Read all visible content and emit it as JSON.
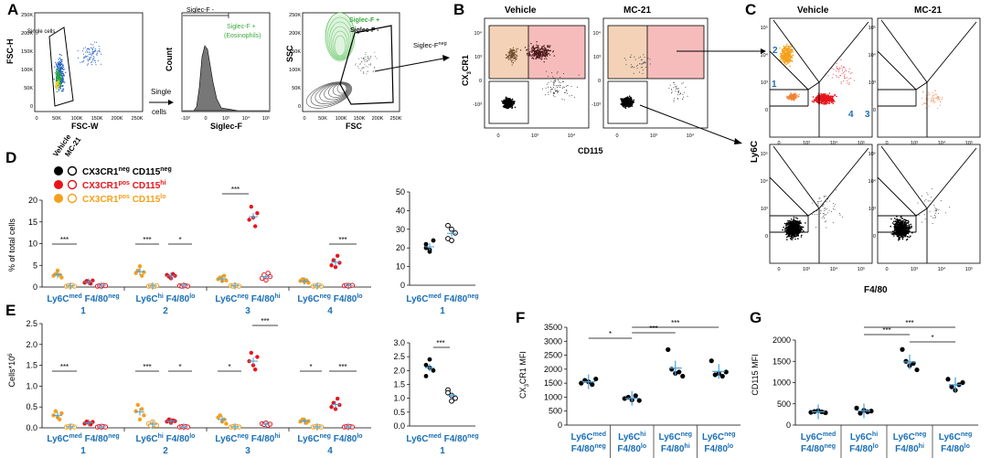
{
  "panels": {
    "A": {
      "letter": "A",
      "plot1": {
        "ylabel": "FSC-H",
        "xlabel": "FSC-W",
        "gate": "Single cells",
        "yticks": [
          "250K",
          "200K",
          "150K",
          "100K",
          "50K",
          "0"
        ],
        "xticks": [
          "0",
          "50K",
          "100K",
          "150K",
          "200K",
          "250K"
        ]
      },
      "arrow1": [
        "Single",
        "cells"
      ],
      "plot2": {
        "ylabel": "Count",
        "xlabel": "Siglec-F",
        "neg_label": "Siglec-F -",
        "pos_label": [
          "Siglec-F +",
          "(Eosinophils)"
        ],
        "xticks": [
          "-10³",
          "0",
          "10³",
          "10⁴",
          "10⁵"
        ]
      },
      "plot3": {
        "ylabel": "SSC",
        "xlabel": "FSC",
        "pos_label": "Siglec-F +",
        "neg_label": "Siglec-F -",
        "yticks": [
          "250K",
          "200K",
          "150K",
          "100K",
          "50K",
          "0"
        ],
        "xticks": [
          "0",
          "50K",
          "100K",
          "150K",
          "200K",
          "250K"
        ]
      },
      "arrow3": "Siglec-F",
      "arrow3_sup": "neg"
    },
    "B": {
      "letter": "B",
      "titles": [
        "Vehicle",
        "MC-21"
      ],
      "ylabel": "CX",
      "ylabel_sub": "3",
      "ylabel_rest": "CR1",
      "xlabel": "CD115",
      "ticks_y": [
        "10⁴",
        "10³",
        "0",
        "-10³"
      ],
      "ticks_x": [
        "0",
        "10³",
        "10⁴"
      ]
    },
    "C": {
      "letter": "C",
      "titles": [
        "Vehicle",
        "MC-21"
      ],
      "ylabel": "Ly6C",
      "xlabel": "F4/80",
      "gate_numbers": [
        "1",
        "2",
        "3",
        "4"
      ],
      "ticks_y": [
        "10⁵",
        "10⁴",
        "10³",
        "0"
      ],
      "ticks_x": [
        "0",
        "10³",
        "10⁴",
        "10⁵"
      ]
    },
    "D": {
      "letter": "D",
      "ylabel": "% of total cells",
      "legend": {
        "col1": "Vehicle",
        "col2": "MC-21",
        "rows": [
          {
            "pre": "CX3CR1",
            "sup1": "neg",
            "mid": " CD115",
            "sup2": "neg",
            "color": "#000000"
          },
          {
            "pre": "CX3CR1",
            "sup1": "pos",
            "mid": " CD115",
            "sup2": "hi",
            "color": "#e8141b"
          },
          {
            "pre": "CX3CR1",
            "sup1": "pos",
            "mid": " CD115",
            "sup2": "lo",
            "color": "#f6a01a"
          }
        ]
      },
      "yticks": [
        "20",
        "15",
        "10",
        "5",
        "0"
      ],
      "sig": [
        "***",
        "***",
        "*",
        "***",
        "***"
      ],
      "right_yticks": [
        "50",
        "40",
        "30",
        "20",
        "10",
        "0"
      ]
    },
    "E": {
      "letter": "E",
      "ylabel": "Cells*10",
      "ylabel_sup": "6",
      "yticks": [
        "2.5",
        "2.0",
        "1.5",
        "1.0",
        "0.5",
        "0.0"
      ],
      "sig": [
        "***",
        "***",
        "*",
        "*",
        "***",
        "*",
        "***"
      ],
      "right_yticks": [
        "3.0",
        "2.5",
        "2.0",
        "1.5",
        "1.0",
        "0.5",
        "0.0"
      ],
      "right_sig": "***"
    },
    "groups": [
      {
        "a": "Ly6C",
        "as": "med",
        "b": " F4/80",
        "bs": "neg",
        "n": "1"
      },
      {
        "a": "Ly6C",
        "as": "hi",
        "b": " F4/80",
        "bs": "lo",
        "n": "2"
      },
      {
        "a": "Ly6C",
        "as": "neg",
        "b": " F4/80",
        "bs": "hi",
        "n": "3"
      },
      {
        "a": "Ly6C",
        "as": "neg",
        "b": " F4/80",
        "bs": "lo",
        "n": "4"
      }
    ],
    "F": {
      "letter": "F",
      "ylabel_pre": "CX",
      "ylabel_sub": "3",
      "ylabel_post": "CR1 MFI",
      "yticks": [
        "3500",
        "3000",
        "2500",
        "2000",
        "1500",
        "1000",
        "500",
        "0"
      ],
      "sig": [
        "*",
        "***",
        "***"
      ]
    },
    "G": {
      "letter": "G",
      "ylabel": "CD115 MFI",
      "yticks": [
        "2000",
        "1500",
        "1000",
        "500",
        "0"
      ],
      "sig": [
        "***",
        "***",
        "*"
      ]
    }
  },
  "chart_data": [
    {
      "type": "scatter",
      "title": "D: % of total cells",
      "ylabel": "% of total cells",
      "ylim": [
        0,
        20
      ],
      "groups": [
        "Ly6Cmed F4/80neg (1)",
        "Ly6Chi F4/80lo (2)",
        "Ly6Cneg F4/80hi (3)",
        "Ly6Cneg F4/80lo (4)"
      ],
      "series": [
        {
          "name": "Vehicle CX3CR1pos CD115lo",
          "color": "#f6a01a",
          "filled": true,
          "values": [
            [
              2.6,
              3.0,
              3.8,
              2.8,
              2.2
            ],
            [
              3.2,
              3.8,
              4.8,
              2.6,
              3.4
            ],
            [
              1.8,
              2.2,
              1.4,
              2.6,
              1.5
            ],
            [
              1.4,
              1.8,
              1.2,
              1.6,
              1.0
            ]
          ]
        },
        {
          "name": "MC-21 CX3CR1pos CD115lo",
          "color": "#f6a01a",
          "filled": false,
          "values": [
            [
              0.2,
              0.3,
              0.2,
              0.4,
              0.2
            ],
            [
              0.2,
              0.3,
              0.2,
              0.2,
              0.3
            ],
            [
              0.3,
              0.2,
              0.4,
              0.3,
              0.2
            ],
            [
              0.2,
              0.3,
              0.2,
              0.4,
              0.2
            ]
          ]
        },
        {
          "name": "Vehicle CX3CR1pos CD115hi",
          "color": "#e8141b",
          "filled": true,
          "values": [
            [
              1.0,
              1.4,
              1.2,
              0.8,
              1.5
            ],
            [
              2.8,
              2.4,
              2.0,
              3.0,
              2.6
            ],
            [
              15.5,
              18.5,
              16.0,
              14.0,
              17.0
            ],
            [
              5.0,
              6.2,
              4.6,
              7.2,
              5.6
            ]
          ]
        },
        {
          "name": "MC-21 CX3CR1pos CD115hi",
          "color": "#e8141b",
          "filled": false,
          "values": [
            [
              0.2,
              0.3,
              0.2,
              0.4,
              0.3
            ],
            [
              0.3,
              0.2,
              0.4,
              0.3,
              0.2
            ],
            [
              2.0,
              2.8,
              1.6,
              3.2,
              2.4
            ],
            [
              0.3,
              0.4,
              0.2,
              0.3,
              0.4
            ]
          ]
        }
      ]
    },
    {
      "type": "scatter",
      "title": "D right: Ly6Cmed F4/80neg CX3CR1neg CD115neg",
      "ylim": [
        0,
        50
      ],
      "series": [
        {
          "name": "Vehicle",
          "color": "#000000",
          "filled": true,
          "values": [
            20,
            18,
            24,
            22,
            19
          ]
        },
        {
          "name": "MC-21",
          "color": "#000000",
          "filled": false,
          "values": [
            25,
            30,
            28,
            32,
            24
          ]
        }
      ]
    },
    {
      "type": "scatter",
      "title": "E: Cells*10^6",
      "ylabel": "Cells*10^6",
      "ylim": [
        0,
        2.5
      ],
      "groups": [
        "Ly6Cmed F4/80neg (1)",
        "Ly6Chi F4/80lo (2)",
        "Ly6Cneg F4/80hi (3)",
        "Ly6Cneg F4/80lo (4)"
      ],
      "series": [
        {
          "name": "Vehicle CX3CR1pos CD115lo",
          "color": "#f6a01a",
          "filled": true,
          "values": [
            [
              0.3,
              0.4,
              0.25,
              0.2,
              0.35
            ],
            [
              0.4,
              0.55,
              0.2,
              0.45,
              0.3
            ],
            [
              0.25,
              0.3,
              0.15,
              0.2,
              0.1
            ],
            [
              0.15,
              0.2,
              0.18,
              0.12,
              0.16
            ]
          ]
        },
        {
          "name": "MC-21 CX3CR1pos CD115lo",
          "color": "#f6a01a",
          "filled": false,
          "values": [
            [
              0.02,
              0.03,
              0.02,
              0.04,
              0.02
            ],
            [
              0.1,
              0.05,
              0.15,
              0.08,
              0.06
            ],
            [
              0.02,
              0.03,
              0.02,
              0.03,
              0.02
            ],
            [
              0.02,
              0.03,
              0.02,
              0.03,
              0.02
            ]
          ]
        },
        {
          "name": "Vehicle CX3CR1pos CD115hi",
          "color": "#e8141b",
          "filled": true,
          "values": [
            [
              0.1,
              0.15,
              0.12,
              0.08,
              0.14
            ],
            [
              0.15,
              0.2,
              0.12,
              0.18,
              0.16
            ],
            [
              1.6,
              1.8,
              1.5,
              1.4,
              1.7
            ],
            [
              0.5,
              0.6,
              0.45,
              0.7,
              0.55
            ]
          ]
        },
        {
          "name": "MC-21 CX3CR1pos CD115hi",
          "color": "#e8141b",
          "filled": false,
          "values": [
            [
              0.02,
              0.03,
              0.02,
              0.03,
              0.02
            ],
            [
              0.02,
              0.03,
              0.02,
              0.03,
              0.02
            ],
            [
              0.1,
              0.08,
              0.12,
              0.06,
              0.09
            ],
            [
              0.02,
              0.03,
              0.02,
              0.03,
              0.02
            ]
          ]
        }
      ]
    },
    {
      "type": "scatter",
      "title": "E right: Ly6Cmed F4/80neg CX3CR1neg CD115neg",
      "ylim": [
        0,
        3.0
      ],
      "series": [
        {
          "name": "Vehicle",
          "color": "#000000",
          "filled": true,
          "values": [
            2.2,
            2.4,
            2.0,
            1.8,
            2.1
          ]
        },
        {
          "name": "MC-21",
          "color": "#000000",
          "filled": false,
          "values": [
            1.3,
            1.1,
            1.0,
            1.2,
            0.9
          ]
        }
      ]
    },
    {
      "type": "scatter",
      "title": "F: CX3CR1 MFI",
      "ylabel": "CX3CR1 MFI",
      "ylim": [
        0,
        3500
      ],
      "categories": [
        "Ly6Cmed F4/80neg",
        "Ly6Chi F4/80lo",
        "Ly6Cneg F4/80hi",
        "Ly6Cneg F4/80lo"
      ],
      "series": [
        {
          "name": "MFI",
          "color": "#000000",
          "filled": true,
          "values": [
            [
              1500,
              1600,
              1550,
              1450,
              1650
            ],
            [
              950,
              1000,
              900,
              1050,
              880
            ],
            [
              2700,
              2000,
              1850,
              1900,
              1750
            ],
            [
              2300,
              1800,
              1850,
              1750,
              1900
            ]
          ]
        }
      ]
    },
    {
      "type": "scatter",
      "title": "G: CD115 MFI",
      "ylabel": "CD115 MFI",
      "ylim": [
        0,
        2000
      ],
      "categories": [
        "Ly6Cmed F4/80neg",
        "Ly6Chi F4/80lo",
        "Ly6Cneg F4/80hi",
        "Ly6Cneg F4/80lo"
      ],
      "series": [
        {
          "name": "MFI",
          "color": "#000000",
          "filled": true,
          "values": [
            [
              300,
              320,
              340,
              310,
              290
            ],
            [
              400,
              280,
              350,
              310,
              330
            ],
            [
              1780,
              1500,
              1400,
              1450,
              1300
            ],
            [
              1080,
              900,
              820,
              950,
              1000
            ]
          ]
        }
      ]
    }
  ]
}
